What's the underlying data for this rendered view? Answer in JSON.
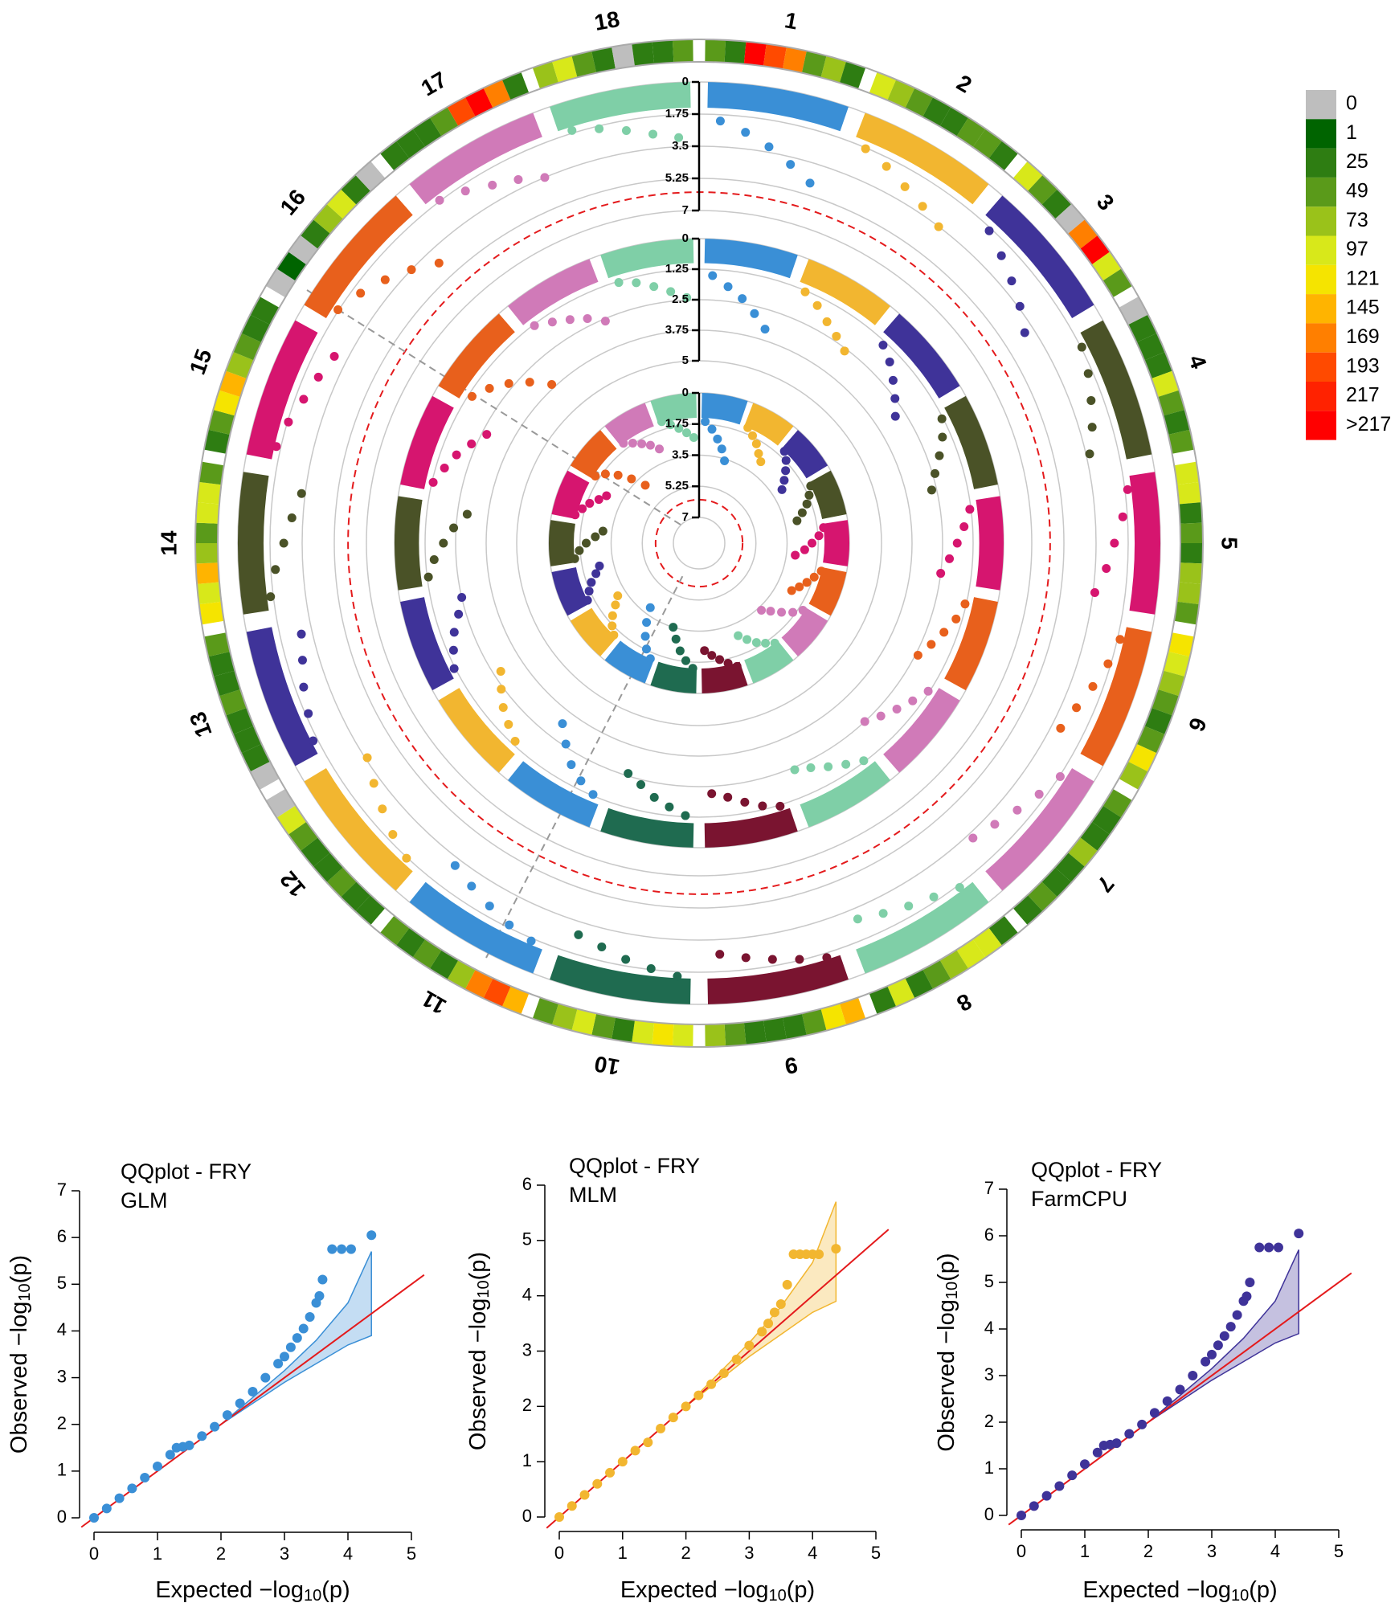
{
  "chart_data": [
    {
      "type": "circos",
      "chromosomes": [
        "1",
        "2",
        "3",
        "4",
        "5",
        "6",
        "7",
        "8",
        "9",
        "10",
        "11",
        "12",
        "13",
        "14",
        "15",
        "16",
        "17",
        "18"
      ],
      "colors": [
        "#3a8fd6",
        "#f2b630",
        "#3f3399",
        "#4a5227",
        "#d6156f",
        "#e8601c",
        "#d07ab8",
        "#7fcfa7",
        "#7a1430",
        "#1f6b50",
        "#3a8fd6",
        "#f2b630",
        "#3f3399",
        "#4a5227",
        "#d6156f",
        "#e8601c",
        "#d07ab8",
        "#7fcfa7"
      ],
      "density": [
        [
          60,
          40,
          230,
          210,
          180,
          50,
          90,
          30
        ],
        [
          110,
          90,
          60,
          45,
          30,
          50,
          70,
          40
        ],
        [
          100,
          60,
          40,
          0,
          190,
          230,
          120,
          60
        ],
        [
          0,
          30,
          45,
          40,
          110,
          60,
          35,
          50
        ],
        [
          120,
          100,
          45,
          60,
          40,
          90,
          80,
          50
        ],
        [
          130,
          110,
          80,
          50,
          45,
          60,
          140,
          90
        ],
        [
          50,
          40,
          30,
          95,
          45,
          35,
          60,
          40
        ],
        [
          40,
          110,
          120,
          90,
          60,
          30,
          100,
          40
        ],
        [
          150,
          140,
          60,
          30,
          30,
          40,
          50,
          90
        ],
        [
          100,
          130,
          120,
          40,
          50,
          110,
          90,
          60
        ],
        [
          160,
          200,
          180,
          90,
          40,
          50,
          30,
          60
        ],
        [
          45,
          40,
          50,
          30,
          40,
          60,
          100,
          0
        ],
        [
          0,
          30,
          45,
          40,
          50,
          35,
          45,
          60
        ],
        [
          140,
          120,
          160,
          90,
          60,
          110,
          120,
          60
        ],
        [
          40,
          50,
          130,
          150,
          90,
          50,
          35,
          40
        ],
        [
          0,
          20,
          0,
          30,
          90,
          110,
          40,
          0
        ],
        [
          35,
          40,
          45,
          50,
          200,
          230,
          180,
          40
        ],
        [
          90,
          100,
          60,
          40,
          0,
          40,
          30,
          50
        ]
      ],
      "legend": {
        "ticks": [
          0,
          1,
          25,
          49,
          73,
          97,
          121,
          145,
          169,
          193,
          217,
          {
            "value": 217,
            "label": ">217"
          }
        ],
        "colors": [
          "#bebebe",
          "#006400",
          "#2e7d12",
          "#5a9a1a",
          "#9ac21a",
          "#d8e81a",
          "#f5e400",
          "#ffb400",
          "#ff7f00",
          "#ff4a00",
          "#ff2200",
          "#ff0000"
        ]
      },
      "rings": [
        {
          "ylim": [
            0,
            7
          ],
          "yticks": [
            0,
            1.75,
            3.5,
            5.25,
            7
          ],
          "threshold": 6,
          "values": [
            [
              2.1,
              2.6,
              3.2,
              3.9,
              4.6
            ],
            [
              1.8,
              2.2,
              2.7,
              3.1,
              3.5
            ],
            [
              1.9,
              2.4,
              2.9,
              3.4,
              4.0
            ],
            [
              1.7,
              2.0,
              2.4,
              2.8,
              3.3
            ],
            [
              1.6,
              2.0,
              2.5,
              2.9,
              3.4
            ],
            [
              1.6,
              1.9,
              2.3,
              2.7,
              3.0
            ],
            [
              1.7,
              2.1,
              2.5,
              2.9,
              3.2
            ],
            [
              1.6,
              2.0,
              2.3,
              2.6,
              2.9
            ],
            [
              1.5,
              1.8,
              2.1,
              2.4,
              2.7
            ],
            [
              1.5,
              1.8,
              2.1,
              2.5,
              2.8
            ],
            [
              1.6,
              1.9,
              2.3,
              2.7,
              3.1
            ],
            [
              1.7,
              2.1,
              2.6,
              3.1,
              3.6
            ],
            [
              1.5,
              1.9,
              2.2,
              2.6,
              2.9
            ],
            [
              1.6,
              2.0,
              2.5,
              2.9,
              3.3
            ],
            [
              1.5,
              1.8,
              2.2,
              2.5,
              2.8
            ],
            [
              1.7,
              2.2,
              2.8,
              3.5,
              4.3
            ],
            [
              1.7,
              2.1,
              2.6,
              3.0,
              3.5
            ],
            [
              1.6,
              1.9,
              2.3,
              2.7,
              3.0
            ]
          ]
        },
        {
          "ylim": [
            0,
            5
          ],
          "yticks": [
            0,
            1.25,
            2.5,
            3.75,
            5
          ],
          "values": [
            [
              1.5,
              1.9,
              2.3,
              2.8,
              3.3
            ],
            [
              1.3,
              1.6,
              2.0,
              2.3,
              2.6
            ],
            [
              1.4,
              1.7,
              2.1,
              2.5,
              2.9
            ],
            [
              1.3,
              1.6,
              2.0,
              2.4,
              2.7
            ],
            [
              1.3,
              1.6,
              1.9,
              2.2,
              2.5
            ],
            [
              1.3,
              1.5,
              1.8,
              2.1,
              2.4
            ],
            [
              1.3,
              1.6,
              1.9,
              2.2,
              2.5
            ],
            [
              1.3,
              1.6,
              1.9,
              2.2,
              2.4
            ],
            [
              1.2,
              1.4,
              1.7,
              2.0,
              2.2
            ],
            [
              1.3,
              1.6,
              1.9,
              2.3,
              2.6
            ],
            [
              1.3,
              1.6,
              2.0,
              2.6,
              3.2
            ],
            [
              1.4,
              1.7,
              2.0,
              2.4,
              2.8
            ],
            [
              1.2,
              1.5,
              1.8,
              2.2,
              2.5
            ],
            [
              1.3,
              1.6,
              2.0,
              2.4,
              2.9
            ],
            [
              1.3,
              1.6,
              1.9,
              2.3,
              2.7
            ],
            [
              1.4,
              1.8,
              2.3,
              2.9,
              3.6
            ],
            [
              1.3,
              1.6,
              1.9,
              2.2,
              2.6
            ],
            [
              1.3,
              1.5,
              1.8,
              2.1,
              2.4
            ]
          ]
        },
        {
          "ylim": [
            0,
            7
          ],
          "yticks": [
            0,
            1.75,
            3.5,
            5.25,
            7
          ],
          "threshold": 6,
          "values": [
            [
              1.6,
              2.0,
              2.5,
              3.0,
              3.6
            ],
            [
              1.4,
              1.7,
              2.0,
              2.4,
              2.7
            ],
            [
              1.4,
              1.7,
              2.1,
              2.5,
              2.9
            ],
            [
              1.4,
              1.7,
              2.0,
              2.4,
              2.8
            ],
            [
              1.4,
              1.7,
              2.1,
              2.5,
              3.0
            ],
            [
              1.4,
              1.7,
              2.0,
              2.3,
              2.6
            ],
            [
              1.5,
              1.9,
              2.4,
              2.9,
              3.3
            ],
            [
              1.4,
              1.7,
              2.0,
              2.4,
              2.8
            ],
            [
              1.2,
              1.5,
              1.8,
              2.1,
              2.4
            ],
            [
              1.4,
              1.8,
              2.3,
              2.9,
              3.5
            ],
            [
              1.4,
              1.8,
              2.4,
              3.1,
              3.9
            ],
            [
              1.4,
              1.7,
              2.1,
              2.6,
              3.0
            ],
            [
              1.4,
              1.7,
              2.0,
              2.4,
              2.7
            ],
            [
              1.4,
              1.7,
              2.1,
              2.6,
              3.0
            ],
            [
              1.3,
              1.6,
              1.9,
              2.3,
              2.6
            ],
            [
              1.5,
              1.9,
              2.5,
              3.2,
              4.0
            ],
            [
              1.4,
              1.7,
              2.0,
              2.3,
              2.7
            ],
            [
              1.3,
              1.6,
              1.9,
              2.2,
              2.5
            ]
          ]
        }
      ]
    },
    {
      "type": "qq",
      "title": "QQplot - FRY",
      "subtitle": "GLM",
      "color": "#3a8fd6",
      "x_label": "Expected −log10(p)",
      "y_label": "Observed −log10(p)",
      "xlim": [
        0,
        5
      ],
      "ylim": [
        0,
        7
      ],
      "xticks": [
        0,
        1,
        2,
        3,
        4,
        5
      ],
      "yticks": [
        0,
        1,
        2,
        3,
        4,
        5,
        6,
        7
      ],
      "x": [
        0,
        0.2,
        0.4,
        0.6,
        0.8,
        1.0,
        1.2,
        1.3,
        1.4,
        1.5,
        1.7,
        1.9,
        2.1,
        2.3,
        2.5,
        2.7,
        2.9,
        3.0,
        3.1,
        3.2,
        3.3,
        3.4,
        3.5,
        3.55,
        3.6,
        3.75,
        3.9,
        4.05,
        4.37
      ],
      "y": [
        0,
        0.2,
        0.42,
        0.63,
        0.86,
        1.1,
        1.35,
        1.5,
        1.52,
        1.55,
        1.75,
        1.95,
        2.2,
        2.45,
        2.7,
        3.0,
        3.3,
        3.45,
        3.65,
        3.85,
        4.05,
        4.3,
        4.6,
        4.75,
        5.1,
        5.75,
        5.75,
        5.75,
        6.05
      ],
      "ci_x": [
        1,
        2,
        3,
        3.5,
        4,
        4.37
      ],
      "ci_upper": [
        1,
        2,
        3.15,
        3.8,
        4.6,
        5.7
      ],
      "ci_lower": [
        1,
        2,
        2.9,
        3.3,
        3.7,
        3.9
      ]
    },
    {
      "type": "qq",
      "title": "QQplot - FRY",
      "subtitle": "MLM",
      "color": "#f2b630",
      "x_label": "Expected −log10(p)",
      "y_label": "Observed −log10(p)",
      "xlim": [
        0,
        5
      ],
      "ylim": [
        0,
        6
      ],
      "xticks": [
        0,
        1,
        2,
        3,
        4,
        5
      ],
      "yticks": [
        0,
        1,
        2,
        3,
        4,
        5,
        6
      ],
      "x": [
        0,
        0.2,
        0.4,
        0.6,
        0.8,
        1.0,
        1.2,
        1.4,
        1.6,
        1.8,
        2.0,
        2.2,
        2.4,
        2.6,
        2.8,
        3.0,
        3.2,
        3.3,
        3.4,
        3.5,
        3.6,
        3.7,
        3.8,
        3.9,
        4.0,
        4.1,
        4.37
      ],
      "y": [
        0,
        0.2,
        0.4,
        0.6,
        0.8,
        1.0,
        1.2,
        1.35,
        1.6,
        1.8,
        2.0,
        2.2,
        2.4,
        2.6,
        2.85,
        3.1,
        3.35,
        3.5,
        3.7,
        3.85,
        4.2,
        4.75,
        4.75,
        4.75,
        4.75,
        4.75,
        4.85
      ],
      "ci_x": [
        1,
        2,
        3,
        3.5,
        4,
        4.37
      ],
      "ci_upper": [
        1,
        2,
        3.15,
        3.8,
        4.6,
        5.7
      ],
      "ci_lower": [
        1,
        2,
        2.9,
        3.3,
        3.7,
        3.9
      ]
    },
    {
      "type": "qq",
      "title": "QQplot - FRY",
      "subtitle": "FarmCPU",
      "color": "#3f3399",
      "x_label": "Expected −log10(p)",
      "y_label": "Observed −log10(p)",
      "xlim": [
        0,
        5
      ],
      "ylim": [
        0,
        7
      ],
      "xticks": [
        0,
        1,
        2,
        3,
        4,
        5
      ],
      "yticks": [
        0,
        1,
        2,
        3,
        4,
        5,
        6,
        7
      ],
      "x": [
        0,
        0.2,
        0.4,
        0.6,
        0.8,
        1.0,
        1.2,
        1.3,
        1.4,
        1.5,
        1.7,
        1.9,
        2.1,
        2.3,
        2.5,
        2.7,
        2.9,
        3.0,
        3.1,
        3.2,
        3.3,
        3.4,
        3.5,
        3.55,
        3.6,
        3.75,
        3.9,
        4.05,
        4.37
      ],
      "y": [
        0,
        0.2,
        0.42,
        0.63,
        0.86,
        1.1,
        1.35,
        1.5,
        1.52,
        1.55,
        1.75,
        1.95,
        2.2,
        2.45,
        2.7,
        3.0,
        3.3,
        3.45,
        3.65,
        3.85,
        4.05,
        4.3,
        4.6,
        4.7,
        5.0,
        5.75,
        5.75,
        5.75,
        6.05
      ],
      "ci_x": [
        1,
        2,
        3,
        3.5,
        4,
        4.37
      ],
      "ci_upper": [
        1,
        2,
        3.15,
        3.8,
        4.6,
        5.7
      ],
      "ci_lower": [
        1,
        2,
        2.9,
        3.3,
        3.7,
        3.9
      ]
    }
  ]
}
